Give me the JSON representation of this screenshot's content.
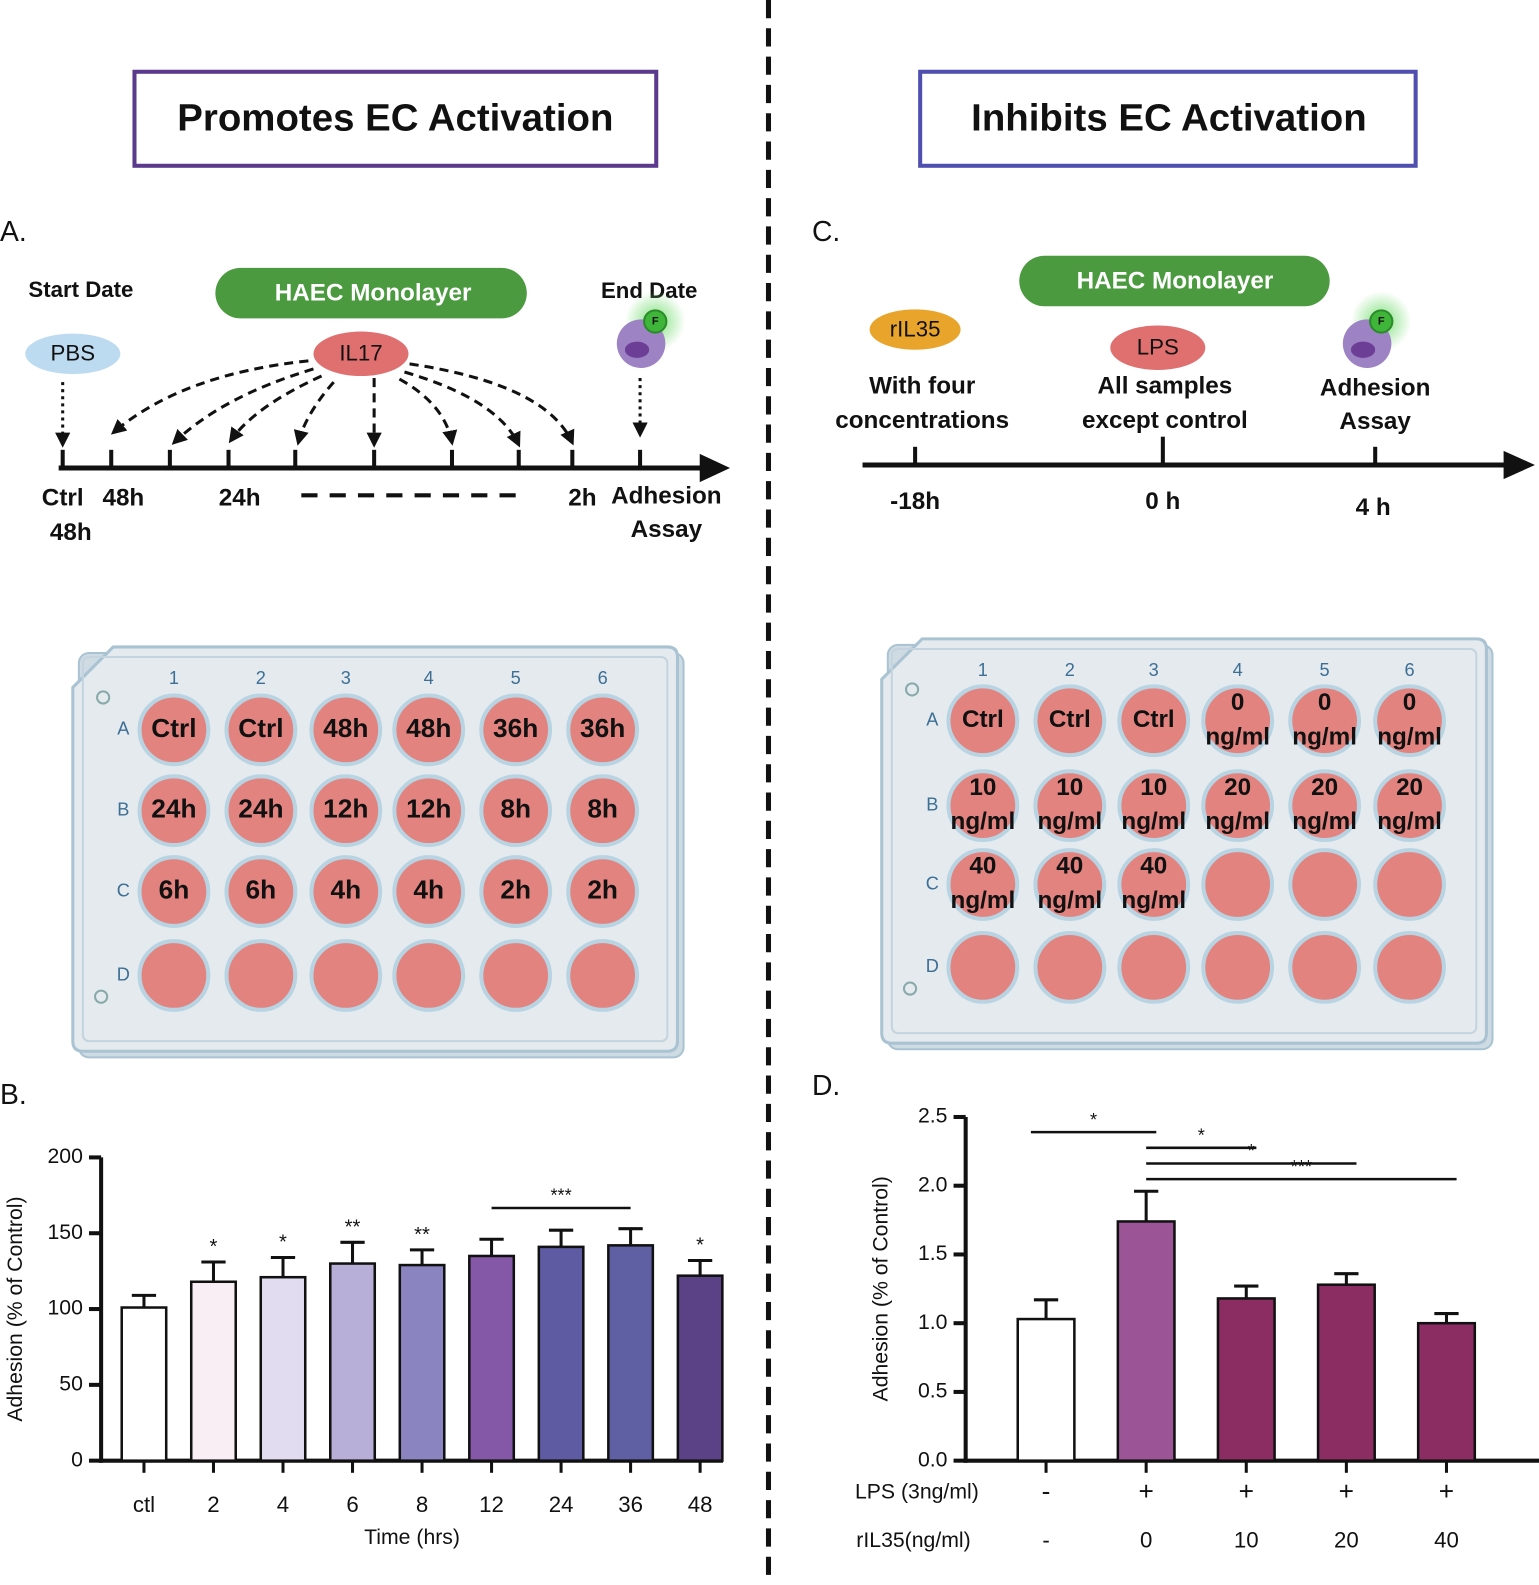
{
  "left": {
    "heading": "Promotes EC Activation",
    "panel_a": {
      "letter": "A.",
      "start_label": "Start Date",
      "monolayer": "HAEC Monolayer",
      "end_label": "End Date",
      "control": "PBS",
      "treatment": "IL17",
      "fluorophore": "F",
      "timeline": [
        [
          "Ctrl",
          "48h"
        ],
        [
          "48h"
        ],
        [
          "24h"
        ],
        [
          "2h"
        ],
        [
          "Adhesion",
          "Assay"
        ]
      ]
    },
    "plate": {
      "columns": [
        "1",
        "2",
        "3",
        "4",
        "5",
        "6"
      ],
      "rows": [
        "A",
        "B",
        "C",
        "D"
      ],
      "wells": [
        [
          [
            "Ctrl"
          ],
          [
            "Ctrl"
          ],
          [
            "48h"
          ],
          [
            "48h"
          ],
          [
            "36h"
          ],
          [
            "36h"
          ]
        ],
        [
          [
            "24h"
          ],
          [
            "24h"
          ],
          [
            "12h"
          ],
          [
            "12h"
          ],
          [
            "8h"
          ],
          [
            "8h"
          ]
        ],
        [
          [
            "6h"
          ],
          [
            "6h"
          ],
          [
            "4h"
          ],
          [
            "4h"
          ],
          [
            "2h"
          ],
          [
            "2h"
          ]
        ],
        [
          null,
          null,
          null,
          null,
          null,
          null
        ]
      ]
    },
    "panel_b_letter": "B."
  },
  "right": {
    "heading": "Inhibits EC Activation",
    "panel_c": {
      "letter": "C.",
      "monolayer": "HAEC Monolayer",
      "pretreatment": "rIL35",
      "pretreatment_note": [
        "With four",
        "concentrations"
      ],
      "treatment": "LPS",
      "treatment_note": [
        "All samples",
        "except control"
      ],
      "readout": [
        "Adhesion",
        "Assay"
      ],
      "fluorophore": "F",
      "timeline": [
        "-18h",
        "0 h",
        "4 h"
      ]
    },
    "plate": {
      "columns": [
        "1",
        "2",
        "3",
        "4",
        "5",
        "6"
      ],
      "rows": [
        "A",
        "B",
        "C",
        "D"
      ],
      "wells": [
        [
          [
            "Ctrl"
          ],
          [
            "Ctrl"
          ],
          [
            "Ctrl"
          ],
          [
            "0",
            "ng/ml"
          ],
          [
            "0",
            "ng/ml"
          ],
          [
            "0",
            "ng/ml"
          ]
        ],
        [
          [
            "10",
            "ng/ml"
          ],
          [
            "10",
            "ng/ml"
          ],
          [
            "10",
            "ng/ml"
          ],
          [
            "20",
            "ng/ml"
          ],
          [
            "20",
            "ng/ml"
          ],
          [
            "20",
            "ng/ml"
          ]
        ],
        [
          [
            "40",
            "ng/ml"
          ],
          [
            "40",
            "ng/ml"
          ],
          [
            "40",
            "ng/ml"
          ],
          null,
          null,
          null
        ],
        [
          null,
          null,
          null,
          null,
          null,
          null
        ]
      ]
    },
    "panel_d_letter": "D."
  },
  "chart_data": [
    {
      "type": "bar",
      "ylabel": "Adhesion (% of Control)",
      "xlabel": "Time (hrs)",
      "categories": [
        "ctl",
        "2",
        "4",
        "6",
        "8",
        "12",
        "24",
        "36",
        "48"
      ],
      "values": [
        101,
        118,
        121,
        130,
        129,
        135,
        141,
        142,
        122
      ],
      "errors": [
        8,
        13,
        13,
        14,
        10,
        11,
        11,
        11,
        10
      ],
      "colors": [
        "#ffffff",
        "#f9eef3",
        "#e1dcf0",
        "#b8afd8",
        "#8a84c0",
        "#8458a6",
        "#5e5ba2",
        "#5f5fa4",
        "#5b4286"
      ],
      "ylim": [
        0,
        200
      ],
      "yticks": [
        0,
        50,
        100,
        150,
        200
      ],
      "significance": [
        null,
        "*",
        "*",
        "**",
        "**",
        null,
        null,
        null,
        "*"
      ],
      "brackets": [
        {
          "label": "***",
          "from": "12",
          "to": "36"
        }
      ]
    },
    {
      "type": "bar",
      "ylabel": "Adhesion (% of Control)",
      "lps_row_label": "LPS (3ng/ml)",
      "lps": [
        "-",
        "+",
        "+",
        "+",
        "+"
      ],
      "category_row_label": "rIL35(ng/ml)",
      "categories": [
        "-",
        "0",
        "10",
        "20",
        "40"
      ],
      "values": [
        1.03,
        1.74,
        1.18,
        1.28,
        1.0
      ],
      "errors": [
        0.14,
        0.22,
        0.09,
        0.08,
        0.07
      ],
      "colors": [
        "#ffffff",
        "#9b5596",
        "#8b2d63",
        "#8b2d63",
        "#8b2d63"
      ],
      "ylim": [
        0,
        2.5
      ],
      "yticks": [
        {
          "value": 0,
          "label": "0.0"
        },
        0.5,
        {
          "value": 1,
          "label": "1.0"
        },
        1.5,
        {
          "value": 2,
          "label": "2.0"
        },
        2.5
      ],
      "brackets": [
        {
          "label": "*",
          "from": "-",
          "to": "0"
        },
        {
          "label": "*",
          "from": "0",
          "to": "10"
        },
        {
          "label": "*",
          "from": "0",
          "to": "20"
        },
        {
          "label": "***",
          "from": "0",
          "to": "40"
        }
      ]
    }
  ]
}
